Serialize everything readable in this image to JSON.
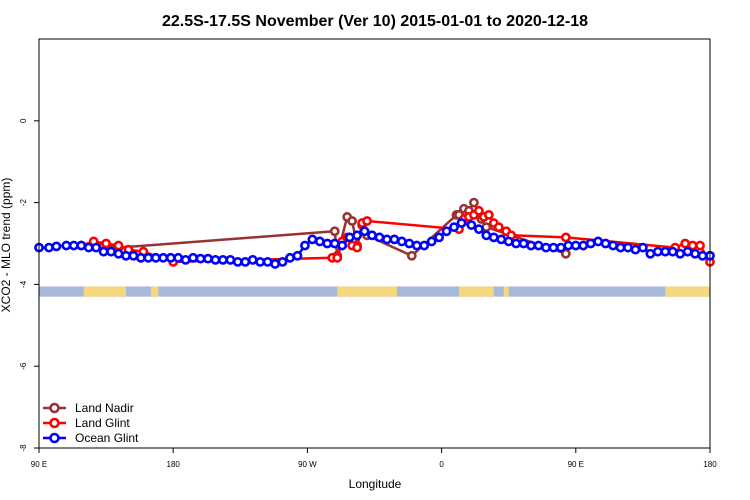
{
  "chart_data": {
    "type": "scatter",
    "title": "22.5S-17.5S November (Ver 10)   2015-01-01 to 2020-12-18",
    "xlabel": "Longitude",
    "ylabel": "XCO2 - MLO trend (ppm)",
    "xlim": [
      -90,
      180
    ],
    "ylim": [
      -8,
      2
    ],
    "x_ticks": [
      {
        "value": -90,
        "label": "90 E"
      },
      {
        "value": -36,
        "label": "180"
      },
      {
        "value": 18,
        "label": "90 W"
      },
      {
        "value": 72,
        "label": "0"
      },
      {
        "value": 126,
        "label": "90 E"
      },
      {
        "value": 180,
        "label": "180"
      }
    ],
    "y_ticks": [
      0,
      -2,
      -4,
      -6,
      -8
    ],
    "grid": false,
    "legend_position": "bottom-left",
    "land_mask": {
      "y_top": -4.05,
      "y_bottom": -4.3,
      "ocean_color": "#a6b9d8",
      "land_color": "#f5d77f",
      "land_segments": [
        [
          -72,
          -55
        ],
        [
          -45,
          -42
        ],
        [
          30,
          54
        ],
        [
          79,
          93
        ],
        [
          97,
          99
        ],
        [
          162,
          187
        ]
      ]
    },
    "series": [
      {
        "name": "Land Nadir",
        "color": "#993333",
        "x": [
          -68,
          -64,
          -58,
          29,
          30,
          34,
          36,
          38,
          40,
          42,
          60,
          78,
          79,
          81,
          83,
          85,
          88,
          90,
          122
        ],
        "y": [
          -3.0,
          -3.05,
          -3.1,
          -2.7,
          -3.3,
          -2.35,
          -2.45,
          -3.05,
          -2.55,
          -2.8,
          -3.3,
          -2.3,
          -2.3,
          -2.15,
          -2.2,
          -2.0,
          -2.4,
          -2.6,
          -3.25
        ]
      },
      {
        "name": "Land Glint",
        "color": "#ff0000",
        "x": [
          -73,
          -68,
          -63,
          -58,
          -54,
          -48,
          -36,
          28,
          30,
          32,
          34,
          36,
          38,
          40,
          42,
          79,
          81,
          83,
          85,
          87,
          89,
          91,
          93,
          95,
          98,
          100,
          122,
          166,
          170,
          173,
          176,
          180
        ],
        "y": [
          -3.05,
          -2.95,
          -3.0,
          -3.05,
          -3.15,
          -3.2,
          -3.45,
          -3.35,
          -3.35,
          -2.95,
          -2.85,
          -3.05,
          -3.1,
          -2.5,
          -2.45,
          -2.65,
          -2.4,
          -2.35,
          -2.3,
          -2.2,
          -2.35,
          -2.3,
          -2.5,
          -2.6,
          -2.7,
          -2.8,
          -2.85,
          -3.1,
          -3.0,
          -3.05,
          -3.05,
          -3.45
        ]
      },
      {
        "name": "Ocean Glint",
        "color": "#0000ff",
        "x": [
          -90,
          -86,
          -83,
          -79,
          -76,
          -73,
          -70,
          -67,
          -64,
          -61,
          -58,
          -55,
          -52,
          -49,
          -46,
          -43,
          -40,
          -37,
          -34,
          -31,
          -28,
          -25,
          -22,
          -19,
          -16,
          -13,
          -10,
          -7,
          -4,
          -1,
          2,
          5,
          8,
          11,
          14,
          17,
          20,
          23,
          26,
          29,
          32,
          35,
          38,
          41,
          44,
          47,
          50,
          53,
          56,
          59,
          62,
          65,
          68,
          71,
          74,
          77,
          80,
          84,
          87,
          90,
          93,
          96,
          99,
          102,
          105,
          108,
          111,
          114,
          117,
          120,
          123,
          126,
          129,
          132,
          135,
          138,
          141,
          144,
          147,
          150,
          153,
          156,
          159,
          162,
          165,
          168,
          171,
          174,
          177,
          180
        ],
        "y": [
          -3.1,
          -3.1,
          -3.07,
          -3.05,
          -3.05,
          -3.05,
          -3.1,
          -3.1,
          -3.2,
          -3.2,
          -3.25,
          -3.3,
          -3.3,
          -3.35,
          -3.35,
          -3.35,
          -3.35,
          -3.35,
          -3.35,
          -3.4,
          -3.35,
          -3.37,
          -3.37,
          -3.4,
          -3.4,
          -3.4,
          -3.45,
          -3.45,
          -3.4,
          -3.45,
          -3.45,
          -3.5,
          -3.45,
          -3.35,
          -3.3,
          -3.05,
          -2.9,
          -2.95,
          -3.0,
          -3.0,
          -3.05,
          -2.85,
          -2.8,
          -2.7,
          -2.8,
          -2.85,
          -2.9,
          -2.9,
          -2.95,
          -3.0,
          -3.05,
          -3.05,
          -2.95,
          -2.85,
          -2.7,
          -2.6,
          -2.5,
          -2.55,
          -2.65,
          -2.8,
          -2.85,
          -2.9,
          -2.95,
          -3.0,
          -3.0,
          -3.05,
          -3.05,
          -3.1,
          -3.1,
          -3.1,
          -3.05,
          -3.05,
          -3.05,
          -3.0,
          -2.95,
          -3.0,
          -3.05,
          -3.1,
          -3.1,
          -3.15,
          -3.1,
          -3.25,
          -3.2,
          -3.2,
          -3.2,
          -3.25,
          -3.2,
          -3.25,
          -3.3,
          -3.3
        ]
      }
    ]
  }
}
